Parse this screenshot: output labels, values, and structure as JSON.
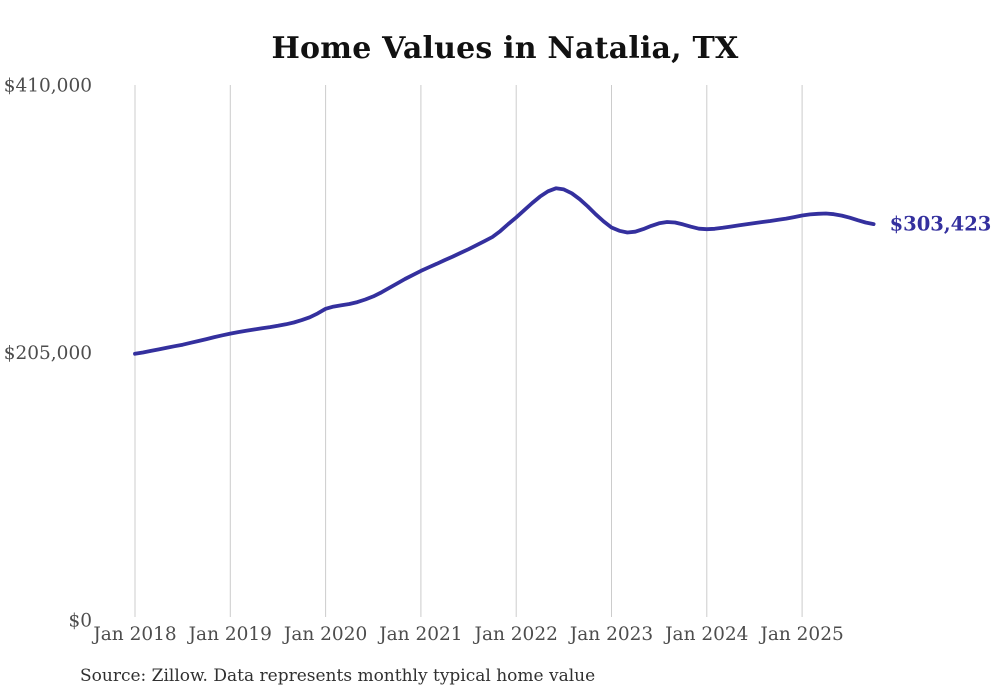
{
  "title": "Home Values in Natalia, TX",
  "source_note": "Source: Zillow. Data represents monthly typical home value",
  "end_label": "$303,423",
  "colors": {
    "line": "#34309e",
    "grid": "#cccccc",
    "axis_text": "#4d4d4d",
    "title_text": "#111111",
    "source_text": "#303030",
    "end_label_text": "#34309e",
    "background": "#ffffff"
  },
  "chart_data": {
    "type": "line",
    "title": "Home Values in Natalia, TX",
    "series_name": "Monthly typical home value",
    "x_start": "2018-01",
    "x_end": "2025-10",
    "x_interval": "monthly",
    "x_tick_labels": [
      "Jan 2018",
      "Jan 2019",
      "Jan 2020",
      "Jan 2021",
      "Jan 2022",
      "Jan 2023",
      "Jan 2024",
      "Jan 2025"
    ],
    "y_tick_labels": [
      "$0",
      "$205,000",
      "$410,000"
    ],
    "y_ticks": [
      0,
      205000,
      410000
    ],
    "ylim": [
      0,
      410000
    ],
    "grid": "vertical-only",
    "legend": "none",
    "last_value": 303423,
    "last_value_label": "$303,423",
    "values": [
      204000,
      205000,
      206200,
      207400,
      208600,
      209800,
      211000,
      212400,
      213800,
      215300,
      216800,
      218200,
      219500,
      220600,
      221600,
      222600,
      223600,
      224500,
      225500,
      226600,
      228000,
      229800,
      232000,
      235000,
      238500,
      240200,
      241200,
      242200,
      243600,
      245600,
      248000,
      251000,
      254400,
      257900,
      261300,
      264500,
      267500,
      270300,
      273000,
      275800,
      278500,
      281300,
      284200,
      287200,
      290300,
      293500,
      298000,
      303500,
      308500,
      314000,
      319500,
      324500,
      328500,
      330800,
      330000,
      327000,
      322500,
      317000,
      311000,
      305500,
      300800,
      298300,
      297000,
      297600,
      299600,
      302000,
      304000,
      305000,
      304600,
      303200,
      301400,
      299900,
      299500,
      299800,
      300600,
      301500,
      302400,
      303300,
      304200,
      305000,
      305800,
      306700,
      307600,
      308800,
      310000,
      310800,
      311300,
      311500,
      311000,
      309900,
      308300,
      306400,
      304600,
      303423
    ]
  }
}
